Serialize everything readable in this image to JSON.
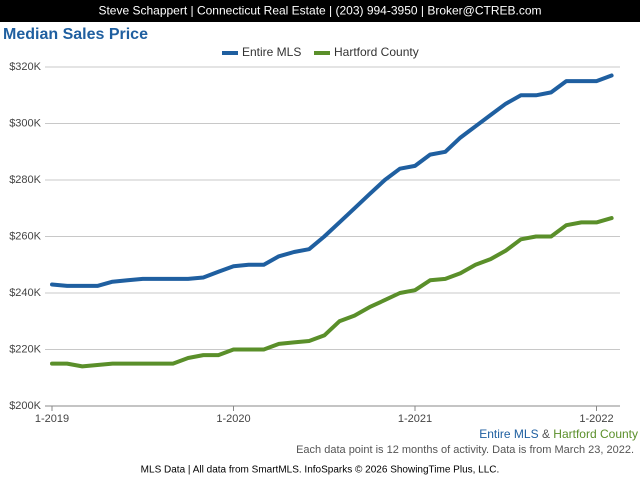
{
  "header": "Steve Schappert | Connecticut Real Estate | (203) 994-3950 | Broker@CTREB.com",
  "chart_data": {
    "type": "line",
    "title": "Median Sales Price",
    "categories": [
      "1-2019",
      null,
      null,
      null,
      null,
      null,
      null,
      null,
      null,
      null,
      null,
      null,
      "1-2020",
      null,
      null,
      null,
      null,
      null,
      null,
      null,
      null,
      null,
      null,
      null,
      "1-2021",
      null,
      null,
      null,
      null,
      null,
      null,
      null,
      null,
      null,
      null,
      null,
      "1-2022",
      null
    ],
    "series": [
      {
        "name": "Entire MLS",
        "color": "#1f5fa0",
        "values": [
          243000,
          242500,
          242500,
          242500,
          244000,
          244500,
          245000,
          245000,
          245000,
          245000,
          245500,
          247500,
          249500,
          250000,
          250000,
          253000,
          254500,
          255500,
          260000,
          265000,
          270000,
          275000,
          280000,
          284000,
          285000,
          289000,
          290000,
          295000,
          299000,
          303000,
          307000,
          310000,
          310000,
          311000,
          315000,
          315000,
          315000,
          317000
        ]
      },
      {
        "name": "Hartford County",
        "color": "#5a8f2a",
        "values": [
          215000,
          215000,
          214000,
          214500,
          215000,
          215000,
          215000,
          215000,
          215000,
          217000,
          218000,
          218000,
          220000,
          220000,
          220000,
          222000,
          222500,
          223000,
          225000,
          230000,
          232000,
          235000,
          237500,
          240000,
          241000,
          244500,
          245000,
          247000,
          250000,
          252000,
          255000,
          259000,
          260000,
          260000,
          264000,
          265000,
          265000,
          266500
        ]
      }
    ],
    "ylim": [
      200000,
      320000
    ],
    "yticks": [
      {
        "value": 200000,
        "label": "$200K"
      },
      {
        "value": 220000,
        "label": "$220K"
      },
      {
        "value": 240000,
        "label": "$240K"
      },
      {
        "value": 260000,
        "label": "$260K"
      },
      {
        "value": 280000,
        "label": "$280K"
      },
      {
        "value": 300000,
        "label": "$300K"
      },
      {
        "value": 320000,
        "label": "$320K"
      }
    ],
    "grid": true,
    "legend": "top"
  },
  "footer": {
    "joiner": "&",
    "note": "Each data point is 12 months of activity. Data is from March 23, 2022.",
    "credit": "MLS Data | All data from SmartMLS. InfoSparks © 2026 ShowingTime Plus, LLC."
  }
}
